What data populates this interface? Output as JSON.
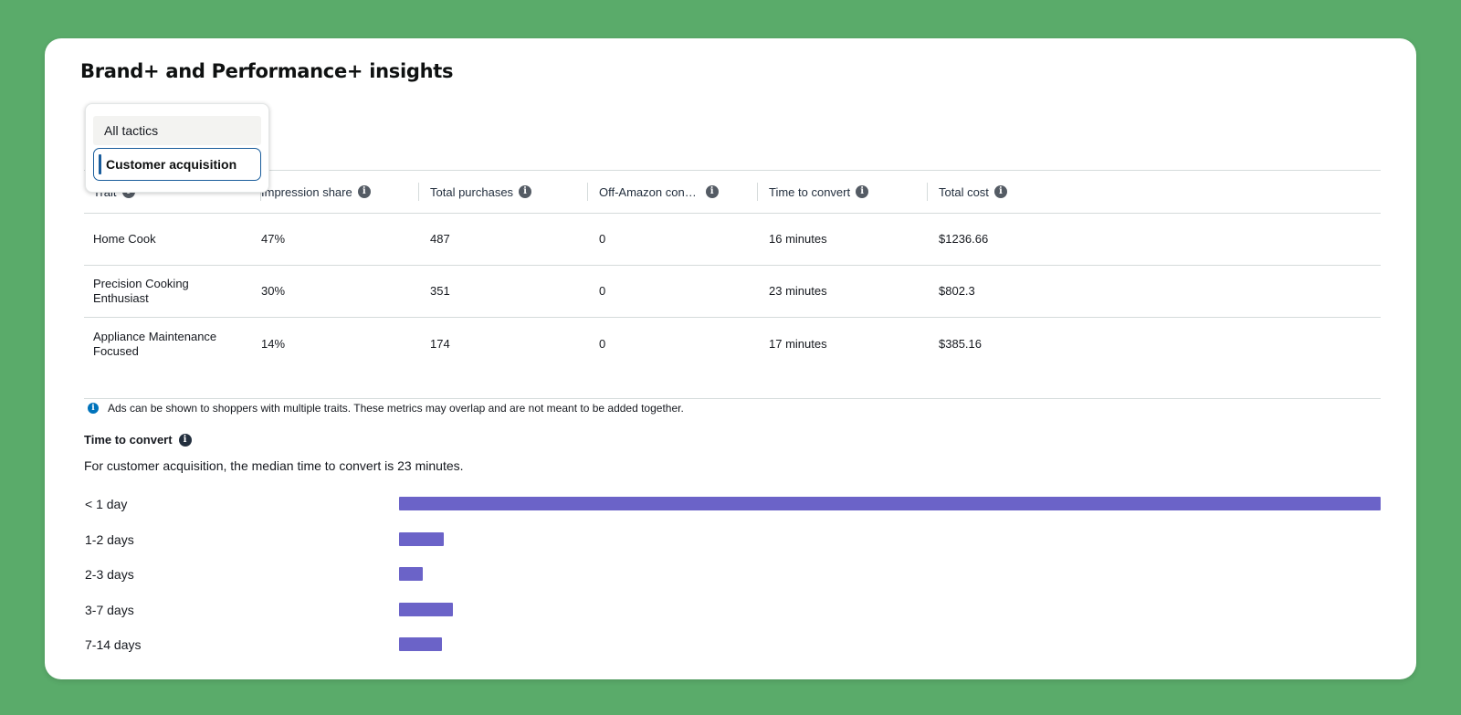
{
  "title": "Brand+ and Performance+ insights",
  "dropdown": {
    "options": [
      "All tactics",
      "Customer acquisition"
    ],
    "selected": "Customer acquisition"
  },
  "table": {
    "columns": [
      "Trait",
      "Impression share",
      "Total purchases",
      "Off-Amazon con…",
      "Time to convert",
      "Total cost"
    ],
    "rows": [
      [
        "Home Cook",
        "47%",
        "487",
        "0",
        "16 minutes",
        "$1236.66"
      ],
      [
        "Precision Cooking Enthusiast",
        "30%",
        "351",
        "0",
        "23 minutes",
        "$802.3"
      ],
      [
        "Appliance Maintenance Focused",
        "14%",
        "174",
        "0",
        "17 minutes",
        "$385.16"
      ]
    ]
  },
  "note": "Ads can be shown to shoppers with multiple traits. These metrics may overlap and are not meant to be added together.",
  "time_to_convert": {
    "title": "Time to convert",
    "description": "For customer acquisition, the median time to convert is 23 minutes."
  },
  "chart_data": {
    "type": "bar",
    "orientation": "horizontal",
    "categories": [
      "< 1 day",
      "1-2 days",
      "2-3 days",
      "3-7 days",
      "7-14 days"
    ],
    "values": [
      1,
      0.046,
      0.024,
      0.055,
      0.044
    ],
    "bar_color": "#6b63c8"
  },
  "colors": {
    "background": "#5aab6a",
    "card": "#ffffff",
    "bar": "#6b63c8",
    "selected_border": "#1a5d9c",
    "info_icon": "#0073bb"
  }
}
